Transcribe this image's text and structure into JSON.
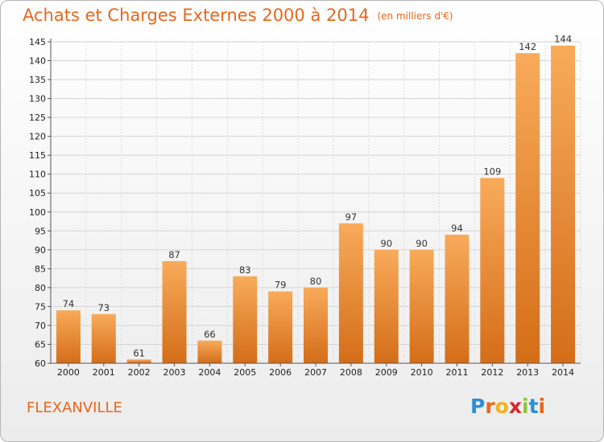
{
  "title": "Achats et Charges Externes 2000 à 2014",
  "unit": "(en milliers d'€)",
  "commune": "FLEXANVILLE",
  "logo": {
    "letters": [
      "P",
      "r",
      "o",
      "x",
      "i",
      "t",
      "i"
    ],
    "colors": [
      "#2a8fd6",
      "#e8661c",
      "#f2b21b",
      "#d7262d",
      "#8cc63e",
      "#2a8fd6",
      "#e8661c"
    ]
  },
  "colors": {
    "accent": "#e8661c",
    "bar_light": "#f8ab5b",
    "bar_dark": "#d46d18"
  },
  "chart_data": {
    "type": "bar",
    "categories": [
      "2000",
      "2001",
      "2002",
      "2003",
      "2004",
      "2005",
      "2006",
      "2007",
      "2008",
      "2009",
      "2010",
      "2011",
      "2012",
      "2013",
      "2014"
    ],
    "values": [
      74,
      73,
      61,
      87,
      66,
      83,
      79,
      80,
      97,
      90,
      90,
      94,
      109,
      142,
      144
    ],
    "ylim": [
      60,
      145
    ],
    "yticks": [
      60,
      65,
      70,
      75,
      80,
      85,
      90,
      95,
      100,
      105,
      110,
      115,
      120,
      125,
      130,
      135,
      140,
      145
    ],
    "grid": true,
    "data_labels": true
  }
}
